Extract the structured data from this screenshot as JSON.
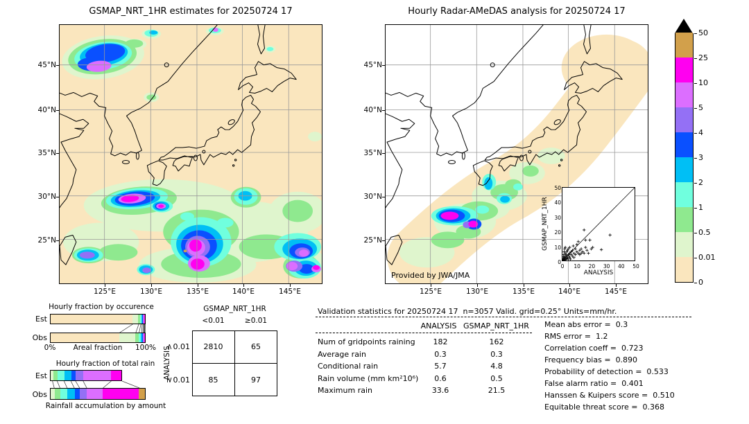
{
  "palette": {
    "map_colors": [
      "#FAE6BE",
      "#DFF5CD",
      "#8FE98F",
      "#70FFDE",
      "#00BFF5",
      "#0A50FF",
      "#9470F5",
      "#DC6EFF",
      "#FF00F0",
      "#D2A04B"
    ],
    "over_color": "#000000",
    "coast_color": "#000000",
    "grid_color": "#9A9A9A"
  },
  "left_map": {
    "title": "GSMAP_NRT_1HR estimates for 20250724 17",
    "lat_labels": [
      "45°N",
      "40°N",
      "35°N",
      "30°N",
      "25°N"
    ],
    "lon_labels": [
      "125°E",
      "130°E",
      "135°E",
      "140°E",
      "145°E"
    ]
  },
  "right_map": {
    "title": "Hourly Radar-AMeDAS analysis for 20250724 17",
    "lat_labels": [
      "45°N",
      "40°N",
      "35°N",
      "30°N",
      "25°N"
    ],
    "lon_labels": [
      "125°E",
      "130°E",
      "135°E",
      "140°E",
      "145°E"
    ],
    "credit": "Provided by JWA/JMA"
  },
  "colorbar": {
    "tick_labels": [
      "0",
      "0.01",
      "0.5",
      "1",
      "2",
      "3",
      "4",
      "5",
      "10",
      "25",
      "50"
    ]
  },
  "inset": {
    "xlabel": "ANALYSIS",
    "ylabel": "GSMAP_NRT_1HR",
    "x_ticks": [
      "0",
      "10",
      "20",
      "30",
      "40",
      "50"
    ],
    "y_ticks": [
      "0",
      "10",
      "20",
      "30",
      "40",
      "50"
    ]
  },
  "occurrence_chart": {
    "title": "Hourly fraction by occurence",
    "x_left": "0%",
    "x_label": "Areal fraction",
    "x_right": "100%"
  },
  "totalrain_chart": {
    "title": "Hourly fraction of total rain",
    "caption": "Rainfall accumulation by amount"
  },
  "contingency": {
    "col_header": "GSMAP_NRT_1HR",
    "row_header": "ANALYSIS"
  },
  "validation": {
    "header": "Validation statistics for 20250724 17  n=3057 Valid. grid=0.25° Units=mm/hr."
  },
  "chart_data": [
    {
      "type": "bar",
      "title": "Hourly fraction by occurence",
      "orientation": "horizontal-stacked",
      "categories": [
        "Est",
        "Obs"
      ],
      "xlabel": "Areal fraction",
      "xlim_labels": [
        "0%",
        "100%"
      ],
      "bins_mm_hr": [
        "0-0.01",
        "0.01-0.5",
        "0.5-1",
        "1-2",
        "2-3",
        "3-4",
        "4-5",
        "5-10",
        "10-25"
      ],
      "color_indices": [
        0,
        1,
        2,
        3,
        4,
        5,
        6,
        7,
        8
      ],
      "series": [
        {
          "name": "Est",
          "fractions": [
            0.865,
            0.063,
            0.022,
            0.013,
            0.01,
            0.008,
            0.007,
            0.005,
            0.007
          ]
        },
        {
          "name": "Obs",
          "fractions": [
            0.73,
            0.168,
            0.034,
            0.026,
            0.014,
            0.009,
            0.006,
            0.005,
            0.008
          ]
        }
      ]
    },
    {
      "type": "bar",
      "title": "Hourly fraction of total rain",
      "orientation": "horizontal-stacked",
      "categories": [
        "Est",
        "Obs"
      ],
      "xlabel": "Rainfall accumulation by amount",
      "est_bar_length_vs_obs": 0.755,
      "bins_mm_hr": [
        "0.01-0.5",
        "0.5-1",
        "1-2",
        "2-3",
        "3-4",
        "4-5",
        "5-10",
        "10-25",
        "25-50"
      ],
      "color_indices": [
        1,
        2,
        3,
        4,
        5,
        6,
        7,
        8,
        9
      ],
      "series": [
        {
          "name": "Est",
          "fractions": [
            0.035,
            0.065,
            0.095,
            0.095,
            0.065,
            0.105,
            0.39,
            0.15,
            0.0
          ]
        },
        {
          "name": "Obs",
          "fractions": [
            0.045,
            0.06,
            0.075,
            0.075,
            0.055,
            0.075,
            0.17,
            0.38,
            0.065
          ]
        }
      ]
    },
    {
      "type": "scatter",
      "xlabel": "ANALYSIS",
      "ylabel": "GSMAP_NRT_1HR",
      "xlim": [
        0,
        50
      ],
      "ylim": [
        0,
        50
      ],
      "diagonal": true,
      "points": [
        [
          0.3,
          0.2
        ],
        [
          0.5,
          1
        ],
        [
          0.6,
          2.5
        ],
        [
          0.8,
          0.4
        ],
        [
          1,
          1.5
        ],
        [
          1,
          4
        ],
        [
          1.2,
          6
        ],
        [
          1.5,
          0.5
        ],
        [
          1.5,
          2
        ],
        [
          1.5,
          8
        ],
        [
          2,
          1
        ],
        [
          2,
          3
        ],
        [
          2,
          5
        ],
        [
          2,
          9
        ],
        [
          2.5,
          0.8
        ],
        [
          2.5,
          4
        ],
        [
          3,
          1.5
        ],
        [
          3,
          3
        ],
        [
          3,
          6
        ],
        [
          3.5,
          2
        ],
        [
          3.5,
          7
        ],
        [
          4,
          1
        ],
        [
          4,
          4
        ],
        [
          4,
          8
        ],
        [
          4.5,
          3
        ],
        [
          5,
          2
        ],
        [
          5,
          5
        ],
        [
          5,
          9
        ],
        [
          5.5,
          1
        ],
        [
          6,
          4
        ],
        [
          6,
          6
        ],
        [
          7,
          3
        ],
        [
          7,
          7
        ],
        [
          7.5,
          10
        ],
        [
          8,
          2
        ],
        [
          8,
          5
        ],
        [
          9,
          4
        ],
        [
          9,
          8
        ],
        [
          10,
          6
        ],
        [
          10,
          11
        ],
        [
          11,
          5
        ],
        [
          11,
          13
        ],
        [
          12,
          7
        ],
        [
          12,
          4
        ],
        [
          13,
          5
        ],
        [
          13,
          8
        ],
        [
          14,
          6
        ],
        [
          15,
          21
        ],
        [
          15,
          5
        ],
        [
          16,
          9
        ],
        [
          16,
          14
        ],
        [
          17,
          7
        ],
        [
          18,
          5
        ],
        [
          19,
          14
        ],
        [
          20,
          8
        ],
        [
          21,
          9
        ],
        [
          27,
          7.5
        ],
        [
          33,
          17.5
        ]
      ]
    },
    {
      "type": "table",
      "title": "Contingency table (gridpoints)",
      "col_group": "GSMAP_NRT_1HR",
      "row_group": "ANALYSIS",
      "col_labels": [
        "<0.01",
        "≥0.01"
      ],
      "row_labels": [
        "<0.01",
        "≥0.01"
      ],
      "values": [
        [
          "2810",
          "65"
        ],
        [
          "85",
          "97"
        ]
      ]
    },
    {
      "type": "table",
      "title": "Validation statistics",
      "columns": [
        "ANALYSIS",
        "GSMAP_NRT_1HR"
      ],
      "rows": [
        {
          "label": "Num of gridpoints raining",
          "values": [
            "182",
            "162"
          ]
        },
        {
          "label": "Average rain",
          "values": [
            "0.3",
            "0.3"
          ]
        },
        {
          "label": "Conditional rain",
          "values": [
            "5.7",
            "4.8"
          ]
        },
        {
          "label": "Rain volume (mm km²10⁶)",
          "values": [
            "0.6",
            "0.5"
          ]
        },
        {
          "label": "Maximum rain",
          "values": [
            "33.6",
            "21.5"
          ]
        }
      ],
      "stats": [
        {
          "label": "Mean abs error",
          "value": "0.3"
        },
        {
          "label": "RMS error",
          "value": "1.2"
        },
        {
          "label": "Correlation coeff",
          "value": "0.723"
        },
        {
          "label": "Frequency bias",
          "value": "0.890"
        },
        {
          "label": "Probability of detection",
          "value": "0.533"
        },
        {
          "label": "False alarm ratio",
          "value": "0.401"
        },
        {
          "label": "Hanssen & Kuipers score",
          "value": "0.510"
        },
        {
          "label": "Equitable threat score",
          "value": "0.368"
        }
      ]
    }
  ]
}
